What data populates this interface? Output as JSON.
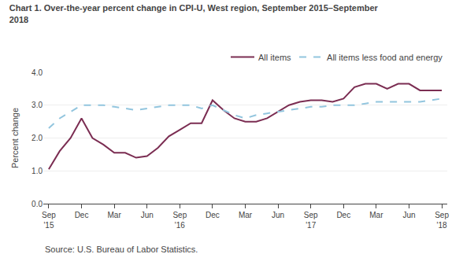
{
  "chart_data": {
    "type": "line",
    "title": "Chart 1. Over-the-year percent change in CPI-U, West region, September 2015–September\n2018",
    "y_label": "Percent change",
    "annotations": [
      "Source: U.S. Bureau of Labor Statistics."
    ],
    "categories": [
      "Sep\n'15",
      null,
      null,
      "Dec",
      null,
      null,
      "Mar",
      null,
      null,
      "Jun",
      null,
      null,
      "Sep\n'16",
      null,
      null,
      "Dec",
      null,
      null,
      "Mar",
      null,
      null,
      "Jun",
      null,
      null,
      "Sep\n'17",
      null,
      null,
      "Dec",
      null,
      null,
      "Mar",
      null,
      null,
      "Jun",
      null,
      null,
      "Sep\n'18"
    ],
    "series": [
      {
        "name": "All items",
        "color": "#7b2d52",
        "line_style": "solid",
        "values": [
          1.05,
          1.6,
          2.0,
          2.6,
          2.0,
          1.8,
          1.55,
          1.55,
          1.4,
          1.45,
          1.7,
          2.05,
          2.25,
          2.45,
          2.45,
          3.15,
          2.85,
          2.6,
          2.5,
          2.5,
          2.6,
          2.8,
          3.0,
          3.1,
          3.15,
          3.15,
          3.1,
          3.2,
          3.55,
          3.65,
          3.65,
          3.5,
          3.65,
          3.65,
          3.45,
          3.45,
          3.45
        ]
      },
      {
        "name": "All items less food and energy",
        "color": "#92c5de",
        "line_style": "dashed",
        "values": [
          2.3,
          2.6,
          2.8,
          3.0,
          3.0,
          3.0,
          2.95,
          2.9,
          2.85,
          2.9,
          2.95,
          3.0,
          3.0,
          3.0,
          2.9,
          3.0,
          2.85,
          2.7,
          2.6,
          2.7,
          2.75,
          2.8,
          2.85,
          2.9,
          2.95,
          2.95,
          3.0,
          3.0,
          3.0,
          3.05,
          3.1,
          3.1,
          3.1,
          3.1,
          3.1,
          3.15,
          3.2
        ]
      }
    ],
    "ylim": [
      0.0,
      4.0
    ],
    "yticks": [
      {
        "value": 0.0,
        "label": "0.0"
      },
      {
        "value": 1.0,
        "label": "1.0"
      },
      {
        "value": 2.0,
        "label": "2.0"
      },
      {
        "value": 3.0,
        "label": "3.0"
      },
      {
        "value": 4.0,
        "label": "4.0"
      }
    ],
    "grid": true,
    "legend": "upper right"
  }
}
